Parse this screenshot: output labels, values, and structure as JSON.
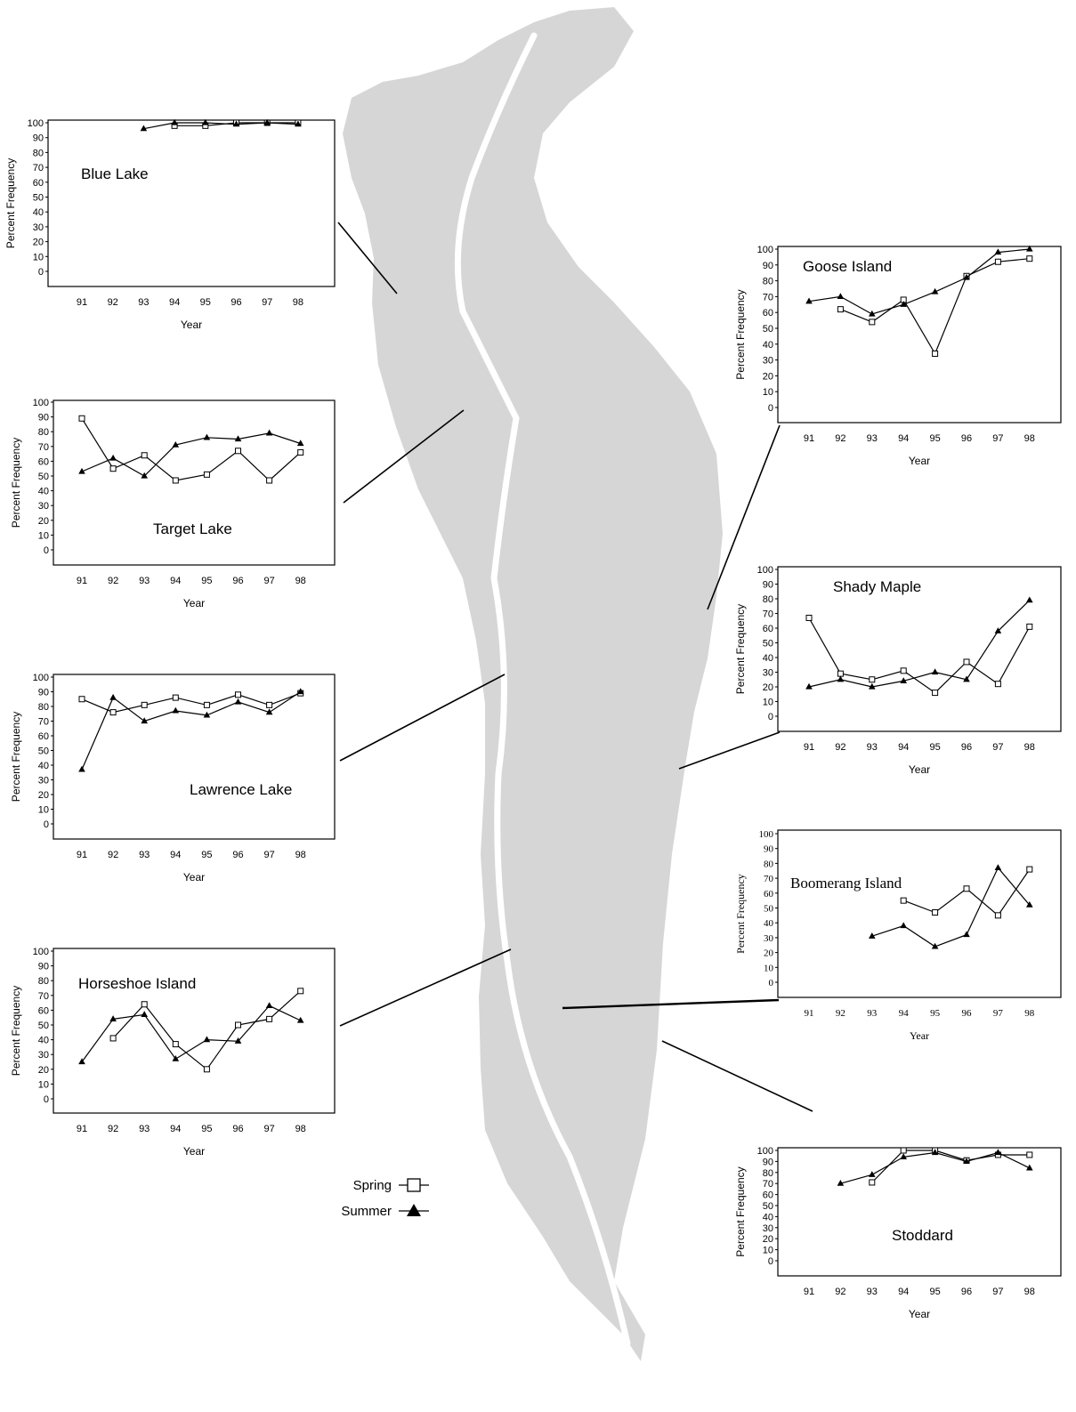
{
  "colors": {
    "map": "#d6d6d6",
    "ink": "#000000",
    "background": "#ffffff"
  },
  "legend": {
    "spring": {
      "label": "Spring",
      "marker": "open-square"
    },
    "summer": {
      "label": "Summer",
      "marker": "filled-triangle"
    }
  },
  "chart_data": [
    {
      "type": "line",
      "title": "Blue Lake",
      "xlabel": "Year",
      "ylabel": "Percent Frequency",
      "categories": [
        "91",
        "92",
        "93",
        "94",
        "95",
        "96",
        "97",
        "98"
      ],
      "yticks": [
        0,
        10,
        20,
        30,
        40,
        50,
        60,
        70,
        80,
        90,
        100
      ],
      "ylim": [
        0,
        100
      ],
      "series": [
        {
          "name": "Spring",
          "marker": "open-square",
          "values": [
            null,
            null,
            null,
            98,
            98,
            100,
            100,
            100
          ]
        },
        {
          "name": "Summer",
          "marker": "filled-triangle",
          "values": [
            null,
            null,
            96,
            100,
            100,
            99,
            100,
            99
          ]
        }
      ]
    },
    {
      "type": "line",
      "title": "Target Lake",
      "xlabel": "Year",
      "ylabel": "Percent Frequency",
      "categories": [
        "91",
        "92",
        "93",
        "94",
        "95",
        "96",
        "97",
        "98"
      ],
      "yticks": [
        0,
        10,
        20,
        30,
        40,
        50,
        60,
        70,
        80,
        90,
        100
      ],
      "ylim": [
        0,
        100
      ],
      "series": [
        {
          "name": "Spring",
          "marker": "open-square",
          "values": [
            89,
            55,
            64,
            47,
            51,
            67,
            47,
            66
          ]
        },
        {
          "name": "Summer",
          "marker": "filled-triangle",
          "values": [
            53,
            62,
            50,
            71,
            76,
            75,
            79,
            72
          ]
        }
      ]
    },
    {
      "type": "line",
      "title": "Lawrence Lake",
      "xlabel": "Year",
      "ylabel": "Percent Frequency",
      "categories": [
        "91",
        "92",
        "93",
        "94",
        "95",
        "96",
        "97",
        "98"
      ],
      "yticks": [
        0,
        10,
        20,
        30,
        40,
        50,
        60,
        70,
        80,
        90,
        100
      ],
      "ylim": [
        0,
        100
      ],
      "series": [
        {
          "name": "Spring",
          "marker": "open-square",
          "values": [
            85,
            76,
            81,
            86,
            81,
            88,
            81,
            89
          ]
        },
        {
          "name": "Summer",
          "marker": "filled-triangle",
          "values": [
            37,
            86,
            70,
            77,
            74,
            83,
            76,
            90
          ]
        }
      ]
    },
    {
      "type": "line",
      "title": "Horseshoe Island",
      "xlabel": "Year",
      "ylabel": "Percent Frequency",
      "categories": [
        "91",
        "92",
        "93",
        "94",
        "95",
        "96",
        "97",
        "98"
      ],
      "yticks": [
        0,
        10,
        20,
        30,
        40,
        50,
        60,
        70,
        80,
        90,
        100
      ],
      "ylim": [
        0,
        100
      ],
      "series": [
        {
          "name": "Spring",
          "marker": "open-square",
          "values": [
            null,
            41,
            64,
            37,
            20,
            50,
            54,
            73
          ]
        },
        {
          "name": "Summer",
          "marker": "filled-triangle",
          "values": [
            25,
            54,
            57,
            27,
            40,
            39,
            63,
            53
          ]
        }
      ]
    },
    {
      "type": "line",
      "title": "Goose Island",
      "xlabel": "Year",
      "ylabel": "Percent Frequency",
      "categories": [
        "91",
        "92",
        "93",
        "94",
        "95",
        "96",
        "97",
        "98"
      ],
      "yticks": [
        0,
        10,
        20,
        30,
        40,
        50,
        60,
        70,
        80,
        90,
        100
      ],
      "ylim": [
        0,
        100
      ],
      "series": [
        {
          "name": "Spring",
          "marker": "open-square",
          "values": [
            null,
            62,
            54,
            68,
            34,
            83,
            92,
            94
          ]
        },
        {
          "name": "Summer",
          "marker": "filled-triangle",
          "values": [
            67,
            70,
            59,
            65,
            73,
            82,
            98,
            100
          ]
        }
      ]
    },
    {
      "type": "line",
      "title": "Shady Maple",
      "xlabel": "Year",
      "ylabel": "Percent Frequency",
      "categories": [
        "91",
        "92",
        "93",
        "94",
        "95",
        "96",
        "97",
        "98"
      ],
      "yticks": [
        0,
        10,
        20,
        30,
        40,
        50,
        60,
        70,
        80,
        90,
        100
      ],
      "ylim": [
        0,
        100
      ],
      "series": [
        {
          "name": "Spring",
          "marker": "open-square",
          "values": [
            67,
            29,
            25,
            31,
            16,
            37,
            22,
            61
          ]
        },
        {
          "name": "Summer",
          "marker": "filled-triangle",
          "values": [
            20,
            25,
            20,
            24,
            30,
            25,
            58,
            79
          ]
        }
      ]
    },
    {
      "type": "line",
      "title": "Boomerang Island",
      "xlabel": "Year",
      "ylabel": "Percent Frequency",
      "categories": [
        "91",
        "92",
        "93",
        "94",
        "95",
        "96",
        "97",
        "98"
      ],
      "yticks": [
        0,
        10,
        20,
        30,
        40,
        50,
        60,
        70,
        80,
        90,
        100
      ],
      "ylim": [
        0,
        100
      ],
      "series": [
        {
          "name": "Spring",
          "marker": "open-square",
          "values": [
            null,
            null,
            null,
            55,
            47,
            63,
            45,
            76
          ]
        },
        {
          "name": "Summer",
          "marker": "filled-triangle",
          "values": [
            null,
            null,
            31,
            38,
            24,
            32,
            77,
            52
          ]
        }
      ]
    },
    {
      "type": "line",
      "title": "Stoddard",
      "xlabel": "Year",
      "ylabel": "Percent Frequency",
      "categories": [
        "91",
        "92",
        "93",
        "94",
        "95",
        "96",
        "97",
        "98"
      ],
      "yticks": [
        0,
        10,
        20,
        30,
        40,
        50,
        60,
        70,
        80,
        90,
        100
      ],
      "ylim": [
        0,
        100
      ],
      "series": [
        {
          "name": "Spring",
          "marker": "open-square",
          "values": [
            null,
            null,
            71,
            100,
            100,
            91,
            96,
            96
          ]
        },
        {
          "name": "Summer",
          "marker": "filled-triangle",
          "values": [
            null,
            70,
            78,
            94,
            98,
            90,
            98,
            84
          ]
        }
      ]
    }
  ]
}
